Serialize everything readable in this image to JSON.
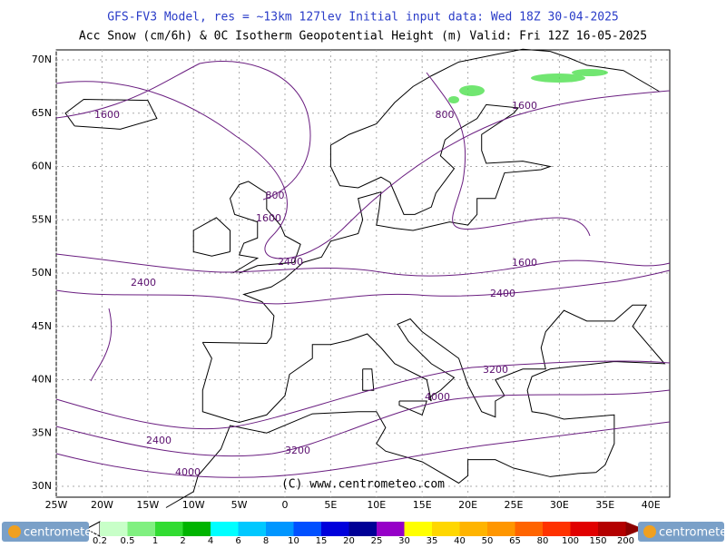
{
  "header": {
    "title": "GFS-FV3 Model, res = ~13km 127lev    Initial input data: Wed 18Z 30-04-2025",
    "subtitle": "Acc Snow (cm/6h) & 0C Isotherm Geopotential Height (m)  Valid: Fri 12Z 16-05-2025"
  },
  "map": {
    "lat_labels": [
      "70N",
      "65N",
      "60N",
      "55N",
      "50N",
      "45N",
      "40N",
      "35N",
      "30N"
    ],
    "lon_labels": [
      "25W",
      "20W",
      "15W",
      "10W",
      "5W",
      "0",
      "5E",
      "10E",
      "15E",
      "20E",
      "25E",
      "30E",
      "35E",
      "40E"
    ],
    "contour_labels": [
      "1600",
      "800",
      "1600",
      "800",
      "1600",
      "2400",
      "1600",
      "2400",
      "2400",
      "3200",
      "4000",
      "2400",
      "3200",
      "4000"
    ],
    "credit": "(C) www.centrometeo.com"
  },
  "legend": {
    "labels": [
      0.2,
      0.5,
      1,
      2,
      4,
      6,
      8,
      10,
      15,
      20,
      25,
      30,
      35,
      40,
      50,
      65,
      80,
      100,
      150,
      200
    ],
    "colors": [
      "#c8ffc8",
      "#80f080",
      "#32dc32",
      "#00b400",
      "#00ffff",
      "#00c8ff",
      "#0096ff",
      "#0050ff",
      "#0000dc",
      "#000096",
      "#9600c8",
      "#ffff00",
      "#ffd700",
      "#ffb400",
      "#ff9600",
      "#ff6400",
      "#ff3200",
      "#e10000",
      "#b40000",
      "#8c0000"
    ],
    "logo": "centrometeo"
  }
}
